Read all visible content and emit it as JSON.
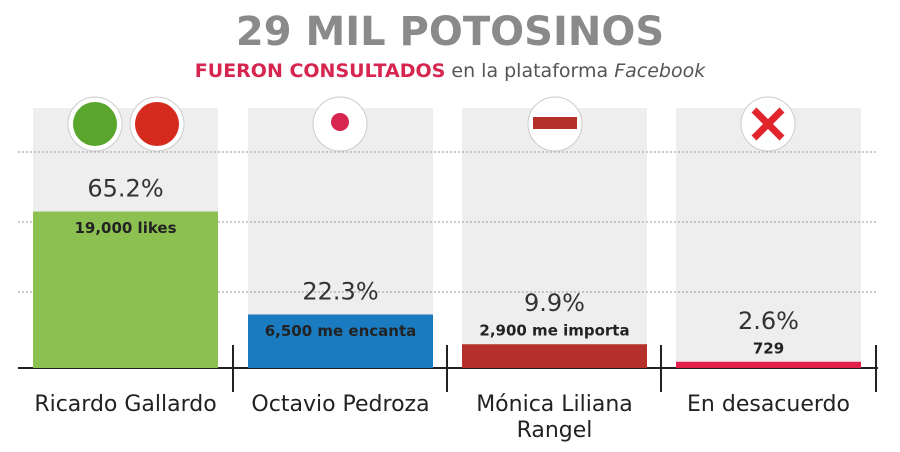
{
  "chart_data": {
    "type": "bar",
    "title": "29 MIL POTOSINOS",
    "subtitle": [
      "FUERON CONSULTADOS",
      "en la plataforma",
      "Facebook"
    ],
    "categories": [
      "Ricardo Gallardo",
      "Octavio Pedroza",
      "Mónica Liliana Rangel",
      "En desacuerdo"
    ],
    "values": [
      65.2,
      22.3,
      9.9,
      2.6
    ],
    "value_labels": [
      "65.2%",
      "22.3%",
      "9.9%",
      "2.6%"
    ],
    "reaction_labels": [
      "19,000 likes",
      "6,500 me encanta",
      "2,900 me importa",
      "729"
    ],
    "colors": [
      "#8cc152",
      "#1b7bc0",
      "#b5302a",
      "#e3204c"
    ]
  }
}
